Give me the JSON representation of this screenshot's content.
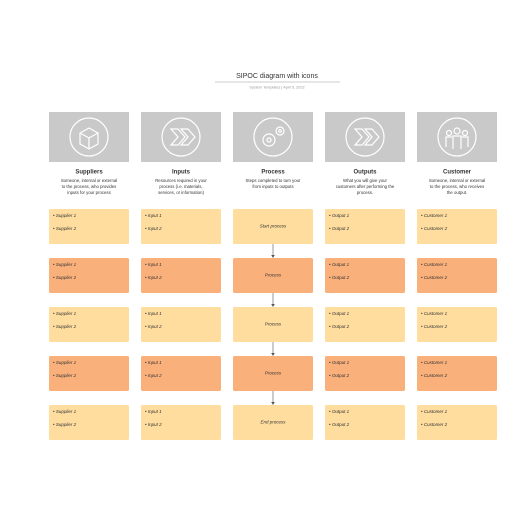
{
  "header": {
    "title": "SIPOC diagram with icons",
    "subtitle": "System Templates  |  April 5, 2022"
  },
  "columns": [
    {
      "name": "Suppliers",
      "description": "Someone, internal or external to the process, who provides inputs for your process",
      "cells": [
        [
          "• Supplier 1",
          "• Supplier 2"
        ],
        [
          "• Supplier 1",
          "• Supplier 2"
        ],
        [
          "• Supplier 1",
          "• Supplier 2"
        ],
        [
          "• Supplier 1",
          "• Supplier 2"
        ],
        [
          "• Supplier 1",
          "• Supplier 2"
        ]
      ]
    },
    {
      "name": "Inputs",
      "description": "Resources required in your process (i.e. materials, services, or information)",
      "cells": [
        [
          "• Input 1",
          "• Input 2"
        ],
        [
          "• Input 1",
          "• Input 2"
        ],
        [
          "• Input 1",
          "• Input 2"
        ],
        [
          "• Input 1",
          "• Input 2"
        ],
        [
          "• Input 1",
          "• Input 2"
        ]
      ]
    },
    {
      "name": "Process",
      "description": "Steps completed to turn your from inputs to outputs",
      "cells": [
        [
          "Start process"
        ],
        [
          "Process"
        ],
        [
          "Process"
        ],
        [
          "Process"
        ],
        [
          "End process"
        ]
      ]
    },
    {
      "name": "Outputs",
      "description": "What you will give your customers after performing the process.",
      "cells": [
        [
          "• Output 1",
          "• Output 2"
        ],
        [
          "• Output 1",
          "• Output 2"
        ],
        [
          "• Output 1",
          "• Output 2"
        ],
        [
          "• Output 1",
          "• Output 2"
        ],
        [
          "• Output 1",
          "• Output 2"
        ]
      ]
    },
    {
      "name": "Customer",
      "description": "Someone, internal or external to the process, who receives the output.",
      "cells": [
        [
          "• Customer 1",
          "• Customer 2"
        ],
        [
          "• Customer 1",
          "• Customer 2"
        ],
        [
          "• Customer 1",
          "• Customer 2"
        ],
        [
          "• Customer 1",
          "• Customer 2"
        ],
        [
          "• Customer 1",
          "• Customer 2"
        ]
      ]
    }
  ]
}
